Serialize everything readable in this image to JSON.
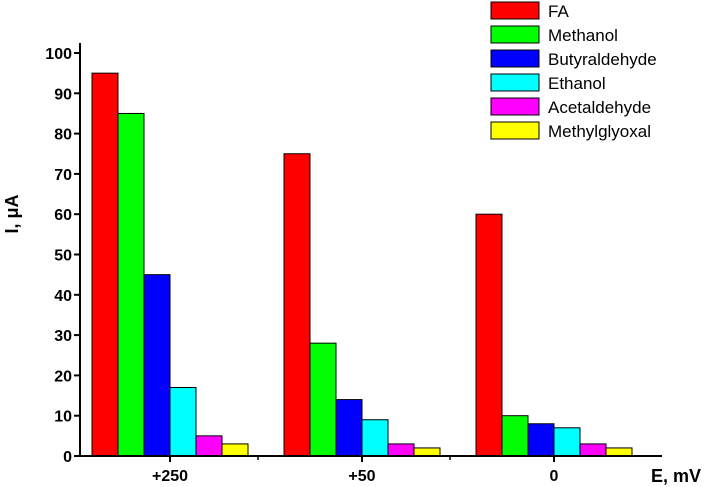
{
  "chart_data": {
    "type": "bar",
    "categories": [
      "+250",
      "+50",
      "0"
    ],
    "series": [
      {
        "name": "FA",
        "values": [
          95,
          75,
          60
        ],
        "color": "#ff0000"
      },
      {
        "name": "Methanol",
        "values": [
          85,
          28,
          10
        ],
        "color": "#00ff00"
      },
      {
        "name": "Butyraldehyde",
        "values": [
          45,
          14,
          8
        ],
        "color": "#0000ff"
      },
      {
        "name": "Ethanol",
        "values": [
          17,
          9,
          7
        ],
        "color": "#00ffff"
      },
      {
        "name": "Acetaldehyde",
        "values": [
          5,
          3,
          3
        ],
        "color": "#ff00ff"
      },
      {
        "name": "Methylglyoxal",
        "values": [
          3,
          2,
          2
        ],
        "color": "#ffff00"
      }
    ],
    "xlabel": "E, mV",
    "ylabel_prefix": "I, ",
    "ylabel_unit": "μA",
    "ylim": [
      0,
      100
    ],
    "yticks": [
      0,
      10,
      20,
      30,
      40,
      50,
      60,
      70,
      80,
      90,
      100
    ],
    "grid": false,
    "legend_position": "top-right"
  }
}
